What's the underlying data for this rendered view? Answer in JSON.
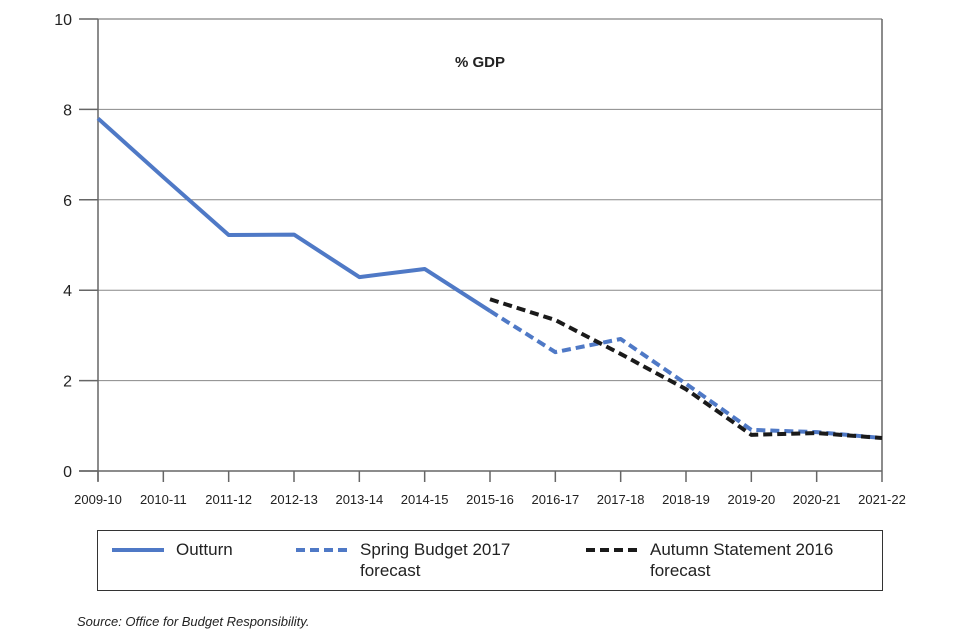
{
  "chart_data": {
    "type": "line",
    "title": "% GDP",
    "xlabel": "",
    "ylabel": "",
    "ylim": [
      0,
      10
    ],
    "yticks": [
      0,
      2,
      4,
      6,
      8,
      10
    ],
    "grid": true,
    "legend_position": "bottom",
    "categories": [
      "2009-10",
      "2010-11",
      "2011-12",
      "2012-13",
      "2013-14",
      "2014-15",
      "2015-16",
      "2016-17",
      "2017-18",
      "2018-19",
      "2019-20",
      "2020-21",
      "2021-22"
    ],
    "series": [
      {
        "name": "Outturn",
        "style": "solid",
        "color": "#4f79c6",
        "values": [
          7.8,
          6.5,
          5.22,
          5.23,
          4.29,
          4.47,
          3.54,
          null,
          null,
          null,
          null,
          null,
          null
        ]
      },
      {
        "name": "Spring Budget 2017 forecast",
        "style": "dashed",
        "color": "#4f79c6",
        "values": [
          null,
          null,
          null,
          null,
          null,
          null,
          3.54,
          2.63,
          2.92,
          1.93,
          0.91,
          0.86,
          0.73
        ]
      },
      {
        "name": "Autumn Statement 2016 forecast",
        "style": "dashed",
        "color": "#1a1a1a",
        "values": [
          null,
          null,
          null,
          null,
          null,
          null,
          3.8,
          3.34,
          2.59,
          1.81,
          0.8,
          0.84,
          0.73
        ]
      }
    ]
  },
  "legend": [
    {
      "label": "Outturn"
    },
    {
      "label": "Spring Budget 2017\nforecast"
    },
    {
      "label": "Autumn Statement 2016\nforecast"
    }
  ],
  "source": "Source: Office for Budget Responsibility."
}
